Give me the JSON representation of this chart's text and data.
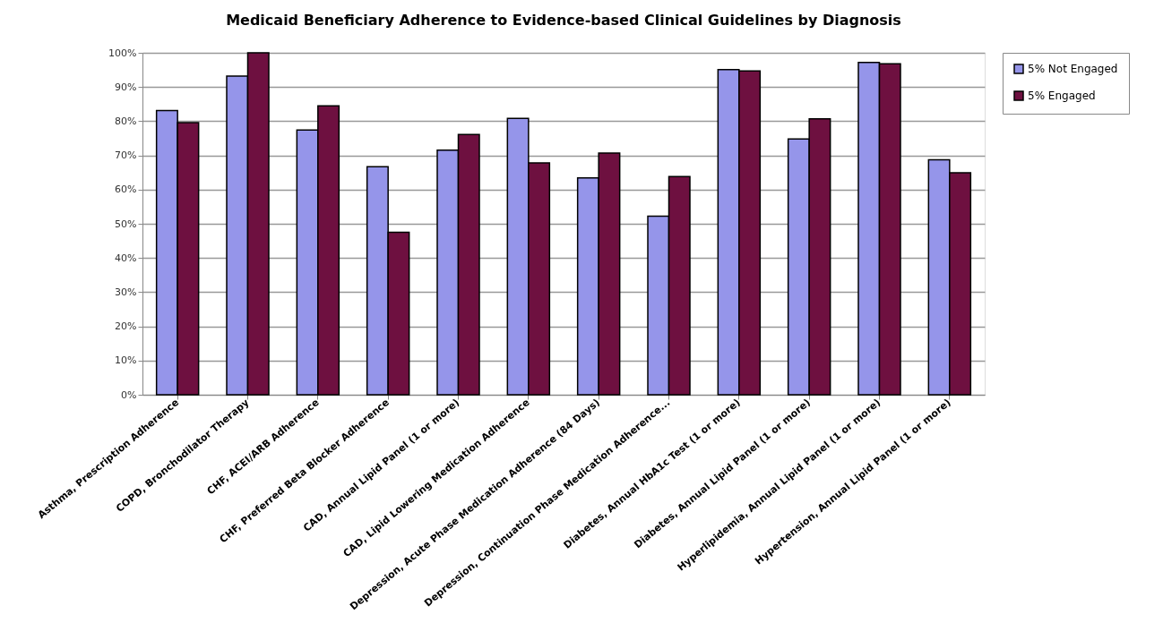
{
  "chart_data": {
    "type": "bar",
    "title": "Medicaid Beneficiary Adherence to Evidence-based Clinical Guidelines by Diagnosis",
    "categories": [
      "Asthma, Prescription Adherence",
      "COPD, Bronchodilator Therapy",
      "CHF, ACEI/ARB Adherence",
      "CHF, Preferred Beta Blocker Adherence",
      "CAD, Annual Lipid Panel (1 or more)",
      "CAD, Lipid Lowering Medication Adherence",
      "Depression, Acute Phase Medication Adherence (84 Days)",
      "Depression, Continuation Phase Medication Adherence...",
      "Diabetes, Annual HbA1c Test (1 or more)",
      "Diabetes, Annual Lipid Panel (1 or more)",
      "Hyperlipidemia, Annual Lipid Panel (1 or more)",
      "Hypertension, Annual Lipid Panel (1 or more)"
    ],
    "series": [
      {
        "name": "5% Not Engaged",
        "color": "#9595ea",
        "values": [
          83.1,
          93.2,
          77.4,
          66.7,
          71.5,
          80.8,
          63.4,
          52.2,
          95.1,
          74.8,
          97.2,
          68.7
        ]
      },
      {
        "name": "5% Engaged",
        "color": "#6e1040",
        "values": [
          79.6,
          100,
          84.5,
          47.5,
          76.1,
          67.8,
          70.7,
          63.8,
          94.7,
          80.7,
          96.8,
          64.9
        ]
      }
    ],
    "ylim": [
      0,
      100
    ],
    "yticks": [
      {
        "value": 0,
        "label": "0%"
      },
      {
        "value": 10,
        "label": "10%"
      },
      {
        "value": 20,
        "label": "20%"
      },
      {
        "value": 30,
        "label": "30%"
      },
      {
        "value": 40,
        "label": "40%"
      },
      {
        "value": 50,
        "label": "50%"
      },
      {
        "value": 60,
        "label": "60%"
      },
      {
        "value": 70,
        "label": "70%"
      },
      {
        "value": 80,
        "label": "80%"
      },
      {
        "value": 90,
        "label": "90%"
      },
      {
        "value": 100,
        "label": "100%"
      }
    ],
    "grid": "y",
    "legend": "right"
  }
}
